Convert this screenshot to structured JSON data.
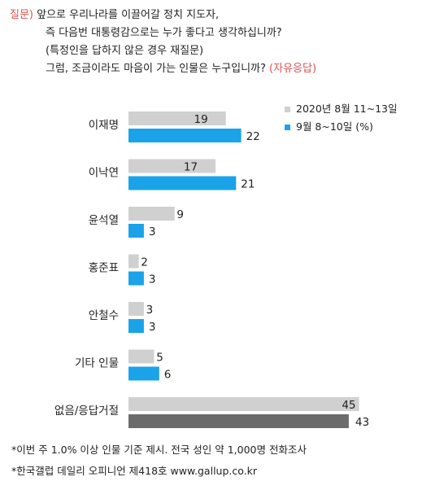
{
  "question": {
    "prefix": "질문)",
    "line1": "앞으로 우리나라를 이끌어갈 정치 지도자,",
    "line2": "즉 다음번 대통령감으로는 누가 좋다고 생각하십니까?",
    "line3": "(특정인을 답하지 않은 경우 재질문)",
    "line4": "그럼, 조금이라도 마음이 가는 인물은 누구입니까?",
    "line4_note": "(자유응답)"
  },
  "chart_data": {
    "type": "bar",
    "orientation": "horizontal",
    "categories": [
      "이재명",
      "이낙연",
      "윤석열",
      "홍준표",
      "안철수",
      "기타 인물",
      "없음/응답거절"
    ],
    "series": [
      {
        "name": "2020년 8월 11~13일",
        "values": [
          19,
          17,
          9,
          2,
          3,
          5,
          45
        ],
        "color": "#d0d0d0"
      },
      {
        "name": "9월 8~10일 (%)",
        "values": [
          22,
          21,
          3,
          3,
          3,
          6,
          43
        ],
        "color": "#1aa3e8"
      }
    ],
    "last_category_second_series_color": "#6b6b6b",
    "legend_position": "top-right",
    "grid": false
  },
  "footnotes": {
    "line1": "*이번 주 1.0% 이상 인물 기준 제시. 전국 성인 약 1,000명 전화조사",
    "line2": "*한국갤럽 데일리 오피니언 제418호 www.gallup.co.kr"
  }
}
